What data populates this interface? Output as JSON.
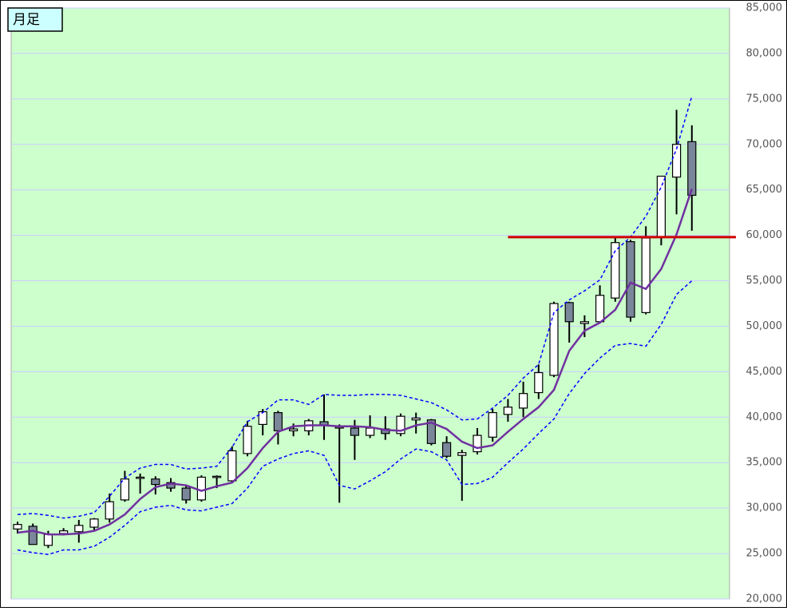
{
  "chart_data": {
    "type": "candlestick",
    "label": "月足",
    "ylim": [
      20000,
      85000
    ],
    "yticks": [
      {
        "value": 20000,
        "label": "20,000"
      },
      {
        "value": 25000,
        "label": "25,000"
      },
      {
        "value": 30000,
        "label": "30,000"
      },
      {
        "value": 35000,
        "label": "35,000"
      },
      {
        "value": 40000,
        "label": "40,000"
      },
      {
        "value": 45000,
        "label": "45,000"
      },
      {
        "value": 50000,
        "label": "50,000"
      },
      {
        "value": 55000,
        "label": "55,000"
      },
      {
        "value": 60000,
        "label": "60,000"
      },
      {
        "value": 65000,
        "label": "65,000"
      },
      {
        "value": 70000,
        "label": "70,000"
      },
      {
        "value": 75000,
        "label": "75,000"
      },
      {
        "value": 80000,
        "label": "80,000"
      },
      {
        "value": 85000,
        "label": "85,000"
      }
    ],
    "grid": true,
    "up_color": "#ffffff",
    "down_color": "#7a8699",
    "candles": {
      "open": [
        27700,
        28000,
        25900,
        27200,
        27400,
        27900,
        28800,
        30900,
        33300,
        33200,
        32800,
        32200,
        30900,
        33400,
        33000,
        36000,
        39200,
        40500,
        38500,
        38500,
        39500,
        39000,
        38800,
        38000,
        38700,
        38200,
        39700,
        39700,
        37200,
        35800,
        36200,
        37800,
        40300,
        41000,
        42700,
        44600,
        52600,
        50300,
        50500,
        53100,
        59300,
        51500,
        59800,
        66400,
        70300
      ],
      "high": [
        28500,
        28300,
        27500,
        27800,
        28700,
        28900,
        31600,
        34100,
        33800,
        33500,
        33300,
        32600,
        33600,
        33600,
        36800,
        39600,
        40900,
        40700,
        39300,
        39800,
        42500,
        39200,
        39700,
        40200,
        40100,
        40400,
        40500,
        39800,
        37900,
        36400,
        38800,
        40900,
        42000,
        43900,
        45800,
        52700,
        52700,
        51200,
        54500,
        59700,
        59500,
        61000,
        66500,
        73800,
        72100
      ],
      "low": [
        27200,
        26000,
        25600,
        27000,
        26200,
        27600,
        28400,
        30700,
        31600,
        31500,
        31800,
        30500,
        30700,
        32200,
        32800,
        35700,
        38000,
        37000,
        37900,
        38000,
        37500,
        30600,
        35300,
        37700,
        37500,
        37900,
        38200,
        36900,
        35500,
        30800,
        35900,
        37300,
        39500,
        40000,
        42000,
        44400,
        48200,
        48800,
        50300,
        52700,
        50500,
        51300,
        58900,
        62300,
        60500
      ],
      "close": [
        28200,
        26000,
        27100,
        27500,
        28100,
        28800,
        30700,
        33200,
        33400,
        32600,
        32200,
        30900,
        33400,
        33500,
        36300,
        39000,
        40600,
        38500,
        38700,
        39600,
        39100,
        38800,
        38000,
        38800,
        38200,
        40100,
        39900,
        37100,
        35700,
        36100,
        38000,
        40500,
        41100,
        42600,
        44900,
        52500,
        50500,
        50500,
        53400,
        59200,
        51000,
        59700,
        66500,
        70000,
        64400
      ]
    },
    "lines": [
      {
        "color": "#7030a0",
        "dash": false,
        "values": [
          27300,
          27500,
          27100,
          27100,
          27200,
          27500,
          28200,
          29300,
          31000,
          32300,
          32700,
          32500,
          31900,
          32400,
          32800,
          34400,
          36600,
          38400,
          39000,
          39100,
          39100,
          39000,
          39000,
          38900,
          38600,
          38500,
          39100,
          39400,
          38700,
          37300,
          36600,
          36900,
          38400,
          39800,
          41100,
          43000,
          47300,
          49500,
          50400,
          51800,
          54800,
          54100,
          56300,
          60100,
          65100
        ]
      },
      {
        "color": "#0000ff",
        "dash": true,
        "values": [
          29300,
          29400,
          29200,
          28900,
          29100,
          29500,
          31300,
          33300,
          34400,
          34800,
          34800,
          34300,
          34400,
          34600,
          36700,
          39500,
          40500,
          41900,
          41900,
          41400,
          42500,
          42400,
          42400,
          42500,
          42500,
          42400,
          42000,
          41600,
          40800,
          39700,
          39800,
          41000,
          42400,
          44300,
          45800,
          51500,
          52900,
          53900,
          55100,
          58300,
          59800,
          62100,
          65300,
          69500,
          75300
        ]
      },
      {
        "color": "#0000ff",
        "dash": true,
        "values": [
          25400,
          25100,
          24900,
          25400,
          25400,
          25800,
          26800,
          28100,
          29600,
          30100,
          30300,
          29800,
          29700,
          30100,
          30500,
          32200,
          34600,
          35400,
          36000,
          36300,
          35800,
          32500,
          32100,
          33000,
          34000,
          35400,
          36500,
          36200,
          35300,
          32600,
          32700,
          33400,
          35000,
          36500,
          38200,
          39800,
          42600,
          44800,
          46500,
          47900,
          48100,
          47800,
          50200,
          53500,
          55000
        ]
      }
    ],
    "hline": {
      "value": 59800,
      "color": "#cc0000",
      "start": 32
    }
  }
}
